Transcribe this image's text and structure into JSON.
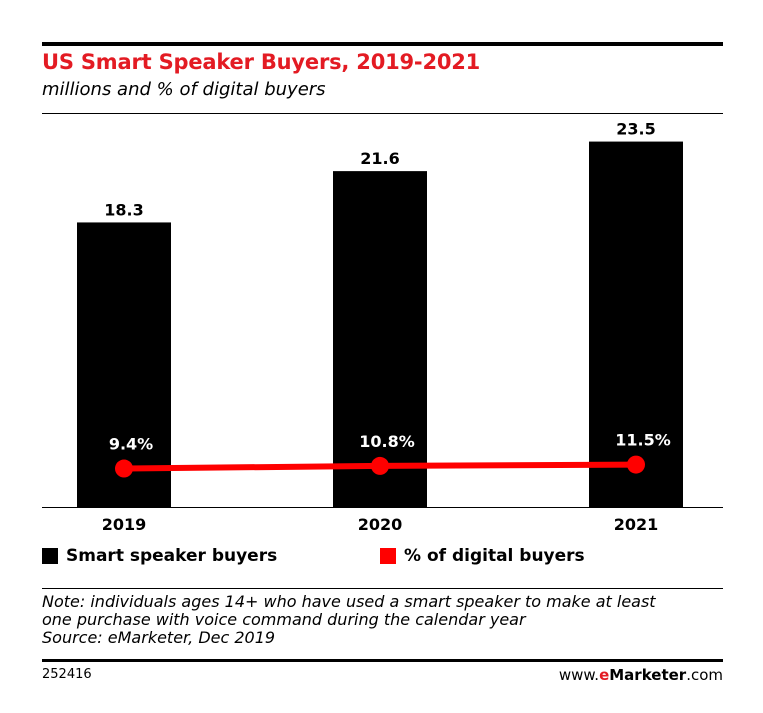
{
  "header": {
    "title": "US Smart Speaker Buyers, 2019-2021",
    "subtitle": "millions and % of digital buyers"
  },
  "chart_data": {
    "type": "bar",
    "categories": [
      "2019",
      "2020",
      "2021"
    ],
    "series": [
      {
        "name": "Smart speaker buyers",
        "type": "bar",
        "values": [
          18.3,
          21.6,
          23.5
        ],
        "labels": [
          "18.3",
          "21.6",
          "23.5"
        ],
        "color": "#000000"
      },
      {
        "name": "% of digital buyers",
        "type": "line",
        "values": [
          9.4,
          10.8,
          11.5
        ],
        "labels": [
          "9.4%",
          "10.8%",
          "11.5%"
        ],
        "color": "#ff0000"
      }
    ],
    "ylim": [
      0,
      25
    ],
    "grid": false,
    "legend": "bottom"
  },
  "legend": {
    "items": [
      {
        "label": "Smart speaker buyers",
        "color": "#000000"
      },
      {
        "label": "% of digital buyers",
        "color": "#ff0000"
      }
    ]
  },
  "note": {
    "line1": "Note: individuals ages 14+ who have used a smart speaker to make at least",
    "line2": "one purchase with voice command during the calendar year",
    "source": "Source: eMarketer, Dec 2019"
  },
  "footer": {
    "chart_id": "252416",
    "brand_prefix": "www.",
    "brand_e": "e",
    "brand_name": "Marketer",
    "brand_suffix": ".com"
  }
}
